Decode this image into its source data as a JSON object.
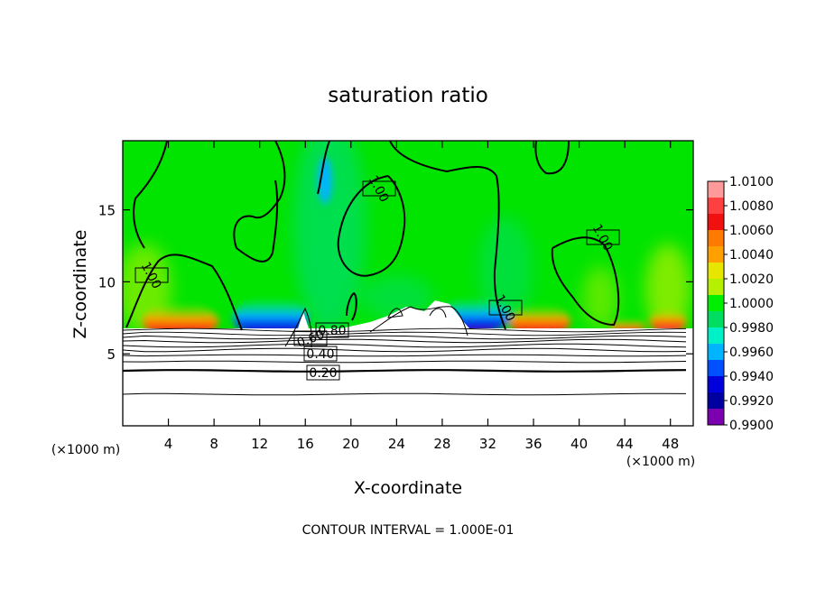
{
  "chart_data": {
    "type": "heatmap",
    "title": "saturation ratio",
    "xlabel": "X-coordinate",
    "ylabel": "Z-coordinate",
    "x_unit": "(×1000 m)",
    "x_ticks": [
      4,
      8,
      12,
      16,
      20,
      24,
      28,
      32,
      36,
      40,
      44,
      48
    ],
    "y_ticks": [
      5,
      10,
      15
    ],
    "xlim": [
      0,
      50
    ],
    "ylim": [
      0,
      19.8
    ],
    "colorbar": {
      "labels": [
        "1.0100",
        "1.0080",
        "1.0060",
        "1.0040",
        "1.0020",
        "1.0000",
        "0.9980",
        "0.9960",
        "0.9940",
        "0.9920",
        "0.9900"
      ],
      "colors": [
        "#ff9a9a",
        "#ff4040",
        "#f01010",
        "#ff7a00",
        "#ffa000",
        "#e6e600",
        "#b4f000",
        "#00ee00",
        "#00dd60",
        "#00f0c8",
        "#00b4ff",
        "#0050ff",
        "#0000dd",
        "#0000a0",
        "#7a00b0"
      ]
    },
    "contour_labels": [
      "1.00",
      "1.00",
      "1.00",
      "1.00",
      "0.80",
      "0.40",
      "0.20",
      "0.60"
    ],
    "cloud_base_height": 6.8,
    "note": "CONTOUR INTERVAL = 1.000E-01"
  }
}
